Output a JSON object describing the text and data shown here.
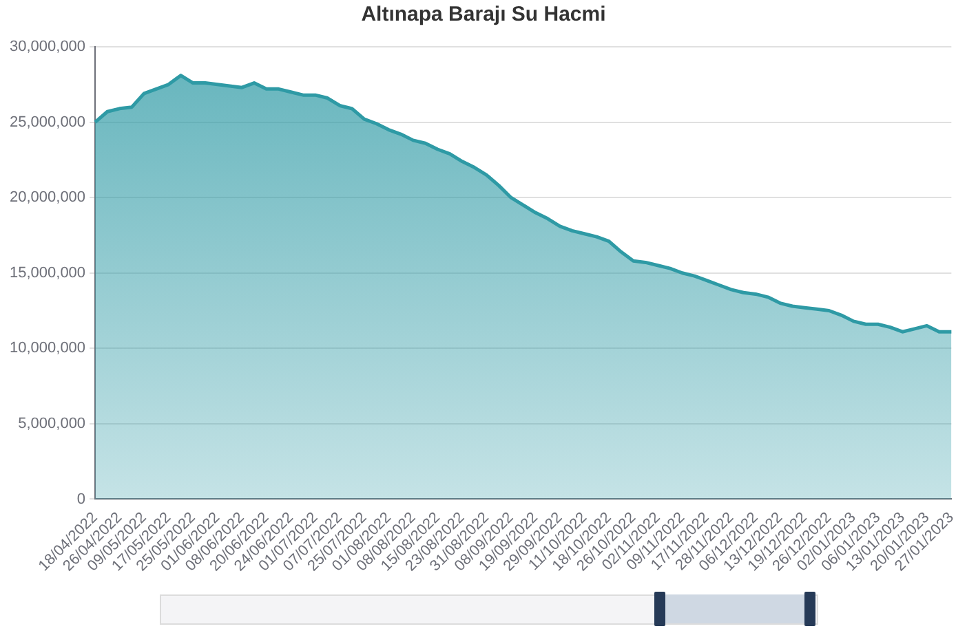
{
  "chart_data": {
    "type": "area",
    "title": "Altınapa Barajı Su Hacmi",
    "categories": [
      "18/04/2022",
      null,
      "26/04/2022",
      null,
      "09/05/2022",
      null,
      "17/05/2022",
      null,
      "25/05/2022",
      null,
      "01/06/2022",
      null,
      "08/06/2022",
      null,
      "20/06/2022",
      null,
      "24/06/2022",
      null,
      "01/07/2022",
      null,
      "07/07/2022",
      null,
      "25/07/2022",
      null,
      "01/08/2022",
      null,
      "08/08/2022",
      null,
      "15/08/2022",
      null,
      "23/08/2022",
      null,
      "31/08/2022",
      null,
      "08/09/2022",
      null,
      "19/09/2022",
      null,
      "29/09/2022",
      null,
      "11/10/2022",
      null,
      "18/10/2022",
      null,
      "26/10/2022",
      null,
      "02/11/2022",
      null,
      "09/11/2022",
      null,
      "17/11/2022",
      null,
      "28/11/2022",
      null,
      "06/12/2022",
      null,
      "13/12/2022",
      null,
      "19/12/2022",
      null,
      "26/12/2022",
      null,
      "02/01/2023",
      null,
      "06/01/2023",
      null,
      "13/01/2023",
      null,
      "20/01/2023",
      null,
      "27/01/2023"
    ],
    "series": [
      {
        "color": "#2e9aa5",
        "values": [
          25000000,
          25700000,
          25900000,
          26000000,
          26900000,
          27200000,
          27500000,
          28100000,
          27600000,
          27600000,
          27500000,
          27400000,
          27300000,
          27600000,
          27200000,
          27200000,
          27000000,
          26800000,
          26800000,
          26600000,
          26100000,
          25900000,
          25200000,
          24900000,
          24500000,
          24200000,
          23800000,
          23600000,
          23200000,
          22900000,
          22400000,
          22000000,
          21500000,
          20800000,
          20000000,
          19500000,
          19000000,
          18600000,
          18100000,
          17800000,
          17600000,
          17400000,
          17100000,
          16400000,
          15800000,
          15700000,
          15500000,
          15300000,
          15000000,
          14800000,
          14500000,
          14200000,
          13900000,
          13700000,
          13600000,
          13400000,
          13000000,
          12800000,
          12700000,
          12600000,
          12500000,
          12200000,
          11800000,
          11600000,
          11600000,
          11400000,
          11100000,
          11300000,
          11500000,
          11100000,
          11100000
        ]
      }
    ],
    "ylim": [
      0,
      30000000
    ],
    "yticks": [
      {
        "value": 0,
        "label": "0"
      },
      {
        "value": 5000000,
        "label": "5,000,000"
      },
      {
        "value": 10000000,
        "label": "10,000,000"
      },
      {
        "value": 15000000,
        "label": "15,000,000"
      },
      {
        "value": 20000000,
        "label": "20,000,000"
      },
      {
        "value": 25000000,
        "label": "25,000,000"
      },
      {
        "value": 30000000,
        "label": "30,000,000"
      }
    ],
    "grid": "y",
    "legend": false,
    "marker": "none",
    "line_style": "solid"
  }
}
